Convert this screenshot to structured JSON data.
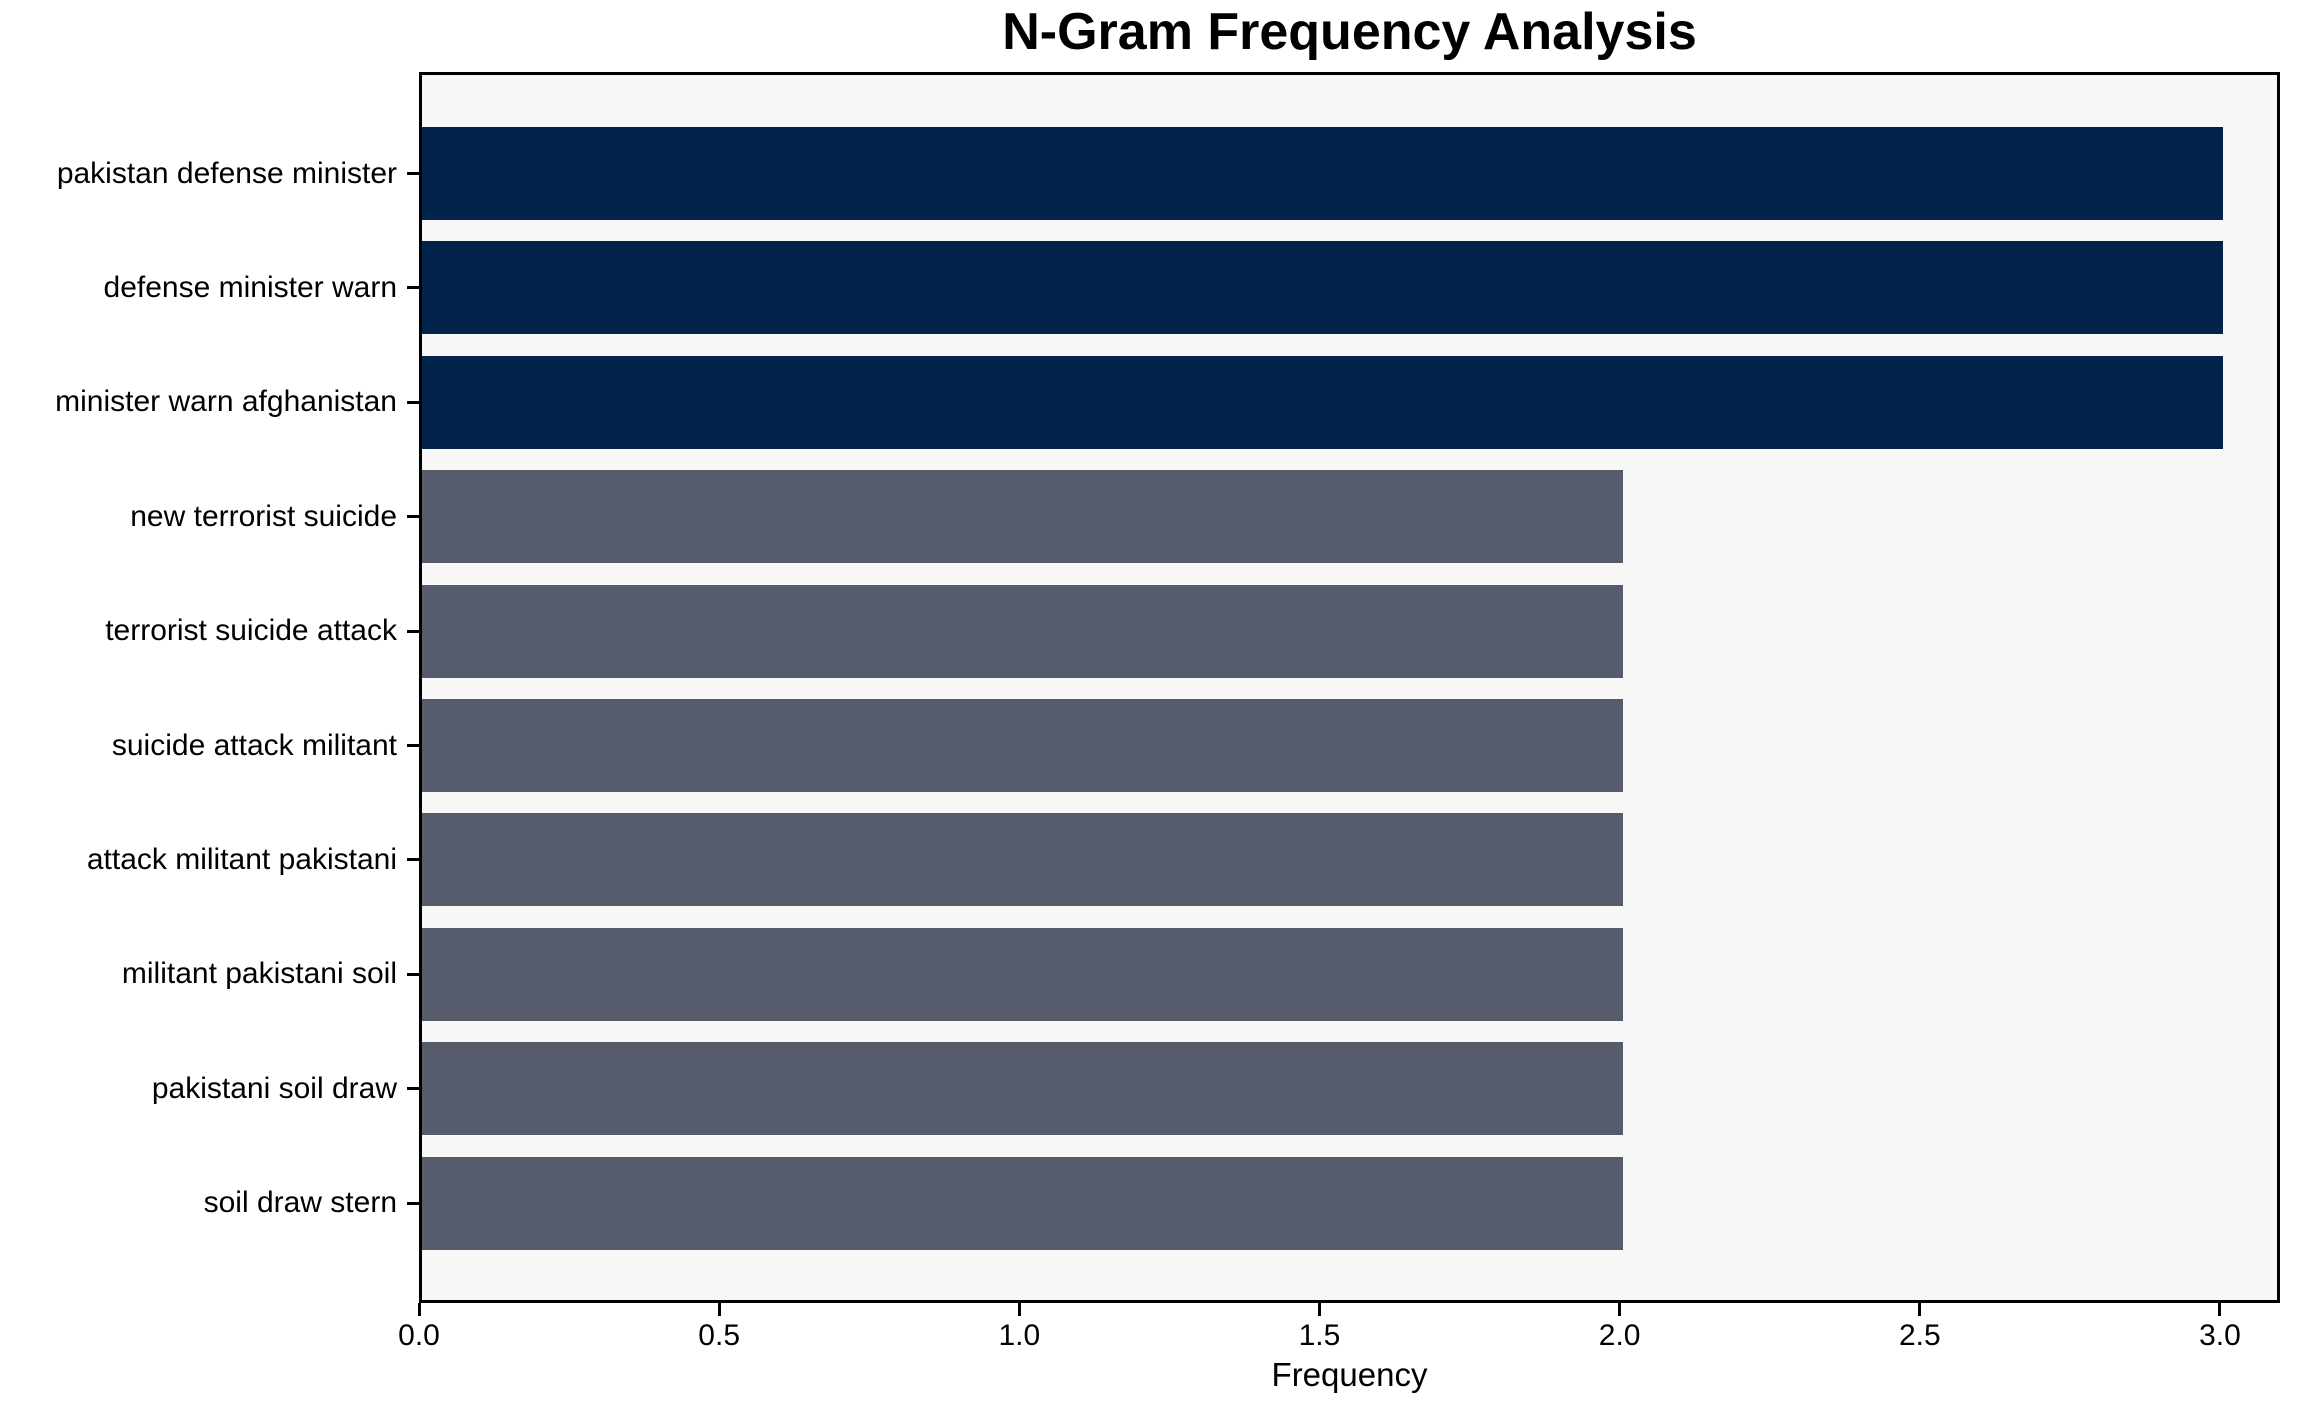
{
  "figure": {
    "title": "N-Gram Frequency Analysis",
    "xlabel": "Frequency"
  },
  "chart_data": {
    "type": "bar",
    "orientation": "horizontal",
    "title": "N-Gram Frequency Analysis",
    "xlabel": "Frequency",
    "ylabel": "",
    "categories": [
      "pakistan defense minister",
      "defense minister warn",
      "minister warn afghanistan",
      "new terrorist suicide",
      "terrorist suicide attack",
      "suicide attack militant",
      "attack militant pakistani",
      "militant pakistani soil",
      "pakistani soil draw",
      "soil draw stern"
    ],
    "values": [
      3,
      3,
      3,
      2,
      2,
      2,
      2,
      2,
      2,
      2
    ],
    "bar_colors": [
      "#02234a",
      "#02234a",
      "#02234a",
      "#565c6c",
      "#565c6c",
      "#565c6c",
      "#565c6c",
      "#565c6c",
      "#565c6c",
      "#565c6c"
    ],
    "x_tick_labels": [
      "0.0",
      "0.5",
      "1.0",
      "1.5",
      "2.0",
      "2.5",
      "3.0"
    ],
    "x_tick_values": [
      0.0,
      0.5,
      1.0,
      1.5,
      2.0,
      2.5,
      3.0
    ],
    "xlim": [
      0,
      3.1
    ],
    "grid": false,
    "legend": null,
    "colors": {
      "bar_high": "#02234a",
      "bar_low": "#565c6c",
      "plot_background": "#f7f7f8",
      "figure_background": "#ffffff",
      "spine": "#000000",
      "text": "#000000"
    }
  }
}
